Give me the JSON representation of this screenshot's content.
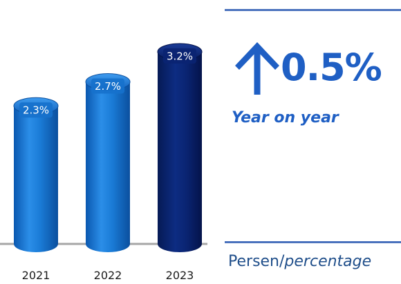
{
  "chart_data": {
    "type": "bar",
    "categories": [
      "2021",
      "2022",
      "2023"
    ],
    "values": [
      2.3,
      2.7,
      3.2
    ],
    "data_labels": [
      "2.3%",
      "2.7%",
      "3.2%"
    ],
    "ylim": [
      0,
      3.2
    ],
    "colors": [
      "#1374cf",
      "#1374cf",
      "#0a2472"
    ],
    "grid": false,
    "legend": "none"
  },
  "kpi": {
    "icon": "arrow-up-icon",
    "value": "0.5%",
    "caption": "Year on year",
    "color": "#1f5fc4"
  },
  "footer": {
    "unit_label": "Persen/",
    "unit_label_italic": "percentage"
  }
}
